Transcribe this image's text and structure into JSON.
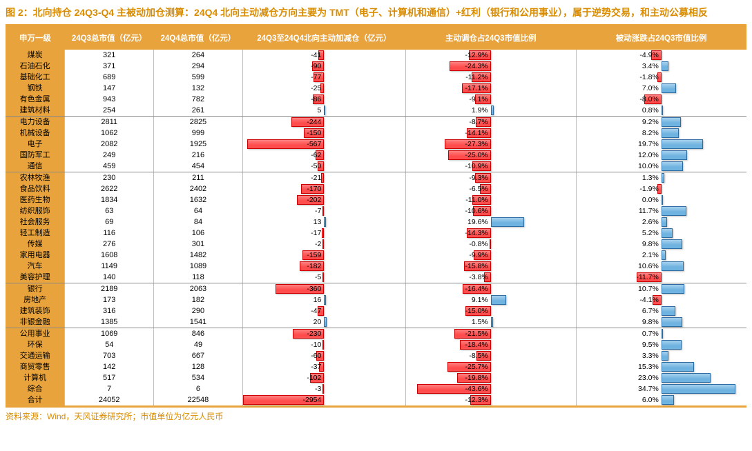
{
  "title": "图 2：北向持仓 24Q3-Q4 主被动加仓测算：24Q4 北向主动减仓方向主要为 TMT（电子、计算机和通信）+红利（银行和公用事业），属于逆势交易，和主动公募相反",
  "source": "资料来源：Wind，天风证券研究所；市值单位为亿元人民币",
  "colors": {
    "header_bg": "#e8a33c",
    "header_fg": "#ffffff",
    "gridline": "#888888",
    "col_border": "#bfbfbf",
    "bar_neg_fill": "#ff4d4d",
    "bar_neg_border": "#cc0000",
    "bar_pos_fill": "#6fb3e0",
    "bar_pos_border": "#2e6da4",
    "title_color": "#d98c00"
  },
  "columns": [
    {
      "key": "name",
      "label": "申万一级",
      "width": "8%"
    },
    {
      "key": "q3",
      "label": "24Q3总市值（亿元）",
      "width": "12%"
    },
    {
      "key": "q4",
      "label": "24Q4总市值（亿元）",
      "width": "12%"
    },
    {
      "key": "delta",
      "label": "24Q3至24Q4北向主动加减仓（亿元）",
      "width": "22%",
      "bar": true,
      "bar_scale": 600,
      "label_side": "left"
    },
    {
      "key": "active_pct",
      "label": "主动调仓占24Q3市值比例",
      "width": "23%",
      "bar": true,
      "bar_scale": 50,
      "label_side": "left",
      "suffix": "%"
    },
    {
      "key": "passive_pct",
      "label": "被动涨跌占24Q3市值比例",
      "width": "23%",
      "bar": true,
      "bar_scale": 40,
      "label_side": "left",
      "suffix": "%"
    }
  ],
  "groups": [
    {
      "rows": [
        {
          "name": "煤炭",
          "q3": 321,
          "q4": 264,
          "delta": -41,
          "active_pct": -12.9,
          "passive_pct": -4.9
        },
        {
          "name": "石油石化",
          "q3": 371,
          "q4": 294,
          "delta": -90,
          "active_pct": -24.3,
          "passive_pct": 3.4
        },
        {
          "name": "基础化工",
          "q3": 689,
          "q4": 599,
          "delta": -77,
          "active_pct": -11.2,
          "passive_pct": -1.8
        },
        {
          "name": "钢铁",
          "q3": 147,
          "q4": 132,
          "delta": -25,
          "active_pct": -17.1,
          "passive_pct": 7.0
        },
        {
          "name": "有色金属",
          "q3": 943,
          "q4": 782,
          "delta": -86,
          "active_pct": -9.1,
          "passive_pct": -8.0
        },
        {
          "name": "建筑材料",
          "q3": 254,
          "q4": 261,
          "delta": 5,
          "active_pct": 1.9,
          "passive_pct": 0.8
        }
      ]
    },
    {
      "rows": [
        {
          "name": "电力设备",
          "q3": 2811,
          "q4": 2825,
          "delta": -244,
          "active_pct": -8.7,
          "passive_pct": 9.2
        },
        {
          "name": "机械设备",
          "q3": 1062,
          "q4": 999,
          "delta": -150,
          "active_pct": -14.1,
          "passive_pct": 8.2
        },
        {
          "name": "电子",
          "q3": 2082,
          "q4": 1925,
          "delta": -567,
          "active_pct": -27.3,
          "passive_pct": 19.7
        },
        {
          "name": "国防军工",
          "q3": 249,
          "q4": 216,
          "delta": -62,
          "active_pct": -25.0,
          "passive_pct": 12.0
        },
        {
          "name": "通信",
          "q3": 459,
          "q4": 454,
          "delta": -50,
          "active_pct": -10.9,
          "passive_pct": 10.0
        }
      ]
    },
    {
      "rows": [
        {
          "name": "农林牧渔",
          "q3": 230,
          "q4": 211,
          "delta": -21,
          "active_pct": -9.3,
          "passive_pct": 1.3
        },
        {
          "name": "食品饮料",
          "q3": 2622,
          "q4": 2402,
          "delta": -170,
          "active_pct": -6.5,
          "passive_pct": -1.9
        },
        {
          "name": "医药生物",
          "q3": 1834,
          "q4": 1632,
          "delta": -202,
          "active_pct": -11.0,
          "passive_pct": 0.0
        },
        {
          "name": "纺织服饰",
          "q3": 63,
          "q4": 64,
          "delta": -7,
          "active_pct": -10.6,
          "passive_pct": 11.7
        },
        {
          "name": "社会服务",
          "q3": 69,
          "q4": 84,
          "delta": 13,
          "active_pct": 19.6,
          "passive_pct": 2.6
        },
        {
          "name": "轻工制造",
          "q3": 116,
          "q4": 106,
          "delta": -17,
          "active_pct": -14.3,
          "passive_pct": 5.2
        },
        {
          "name": "传媒",
          "q3": 276,
          "q4": 301,
          "delta": -2,
          "active_pct": -0.8,
          "passive_pct": 9.8
        },
        {
          "name": "家用电器",
          "q3": 1608,
          "q4": 1482,
          "delta": -159,
          "active_pct": -9.9,
          "passive_pct": 2.1
        },
        {
          "name": "汽车",
          "q3": 1149,
          "q4": 1089,
          "delta": -182,
          "active_pct": -15.8,
          "passive_pct": 10.6
        },
        {
          "name": "美容护理",
          "q3": 140,
          "q4": 118,
          "delta": -5,
          "active_pct": -3.8,
          "passive_pct": -11.7
        }
      ]
    },
    {
      "rows": [
        {
          "name": "银行",
          "q3": 2189,
          "q4": 2063,
          "delta": -360,
          "active_pct": -16.4,
          "passive_pct": 10.7
        },
        {
          "name": "房地产",
          "q3": 173,
          "q4": 182,
          "delta": 16,
          "active_pct": 9.1,
          "passive_pct": -4.1
        },
        {
          "name": "建筑装饰",
          "q3": 316,
          "q4": 290,
          "delta": -47,
          "active_pct": -15.0,
          "passive_pct": 6.7
        },
        {
          "name": "非银金融",
          "q3": 1385,
          "q4": 1541,
          "delta": 20,
          "active_pct": 1.5,
          "passive_pct": 9.8
        }
      ]
    },
    {
      "rows": [
        {
          "name": "公用事业",
          "q3": 1069,
          "q4": 846,
          "delta": -230,
          "active_pct": -21.5,
          "passive_pct": 0.7
        },
        {
          "name": "环保",
          "q3": 54,
          "q4": 49,
          "delta": -10,
          "active_pct": -18.4,
          "passive_pct": 9.5
        },
        {
          "name": "交通运输",
          "q3": 703,
          "q4": 667,
          "delta": -60,
          "active_pct": -8.5,
          "passive_pct": 3.3
        },
        {
          "name": "商贸零售",
          "q3": 142,
          "q4": 128,
          "delta": -37,
          "active_pct": -25.7,
          "passive_pct": 15.3
        },
        {
          "name": "计算机",
          "q3": 517,
          "q4": 534,
          "delta": -102,
          "active_pct": -19.8,
          "passive_pct": 23.0
        },
        {
          "name": "综合",
          "q3": 7,
          "q4": 6,
          "delta": -3,
          "active_pct": -43.6,
          "passive_pct": 34.7
        },
        {
          "name": "合计",
          "q3": 24052,
          "q4": 22548,
          "delta": -2954,
          "active_pct": -12.3,
          "passive_pct": 6.0
        }
      ]
    }
  ]
}
